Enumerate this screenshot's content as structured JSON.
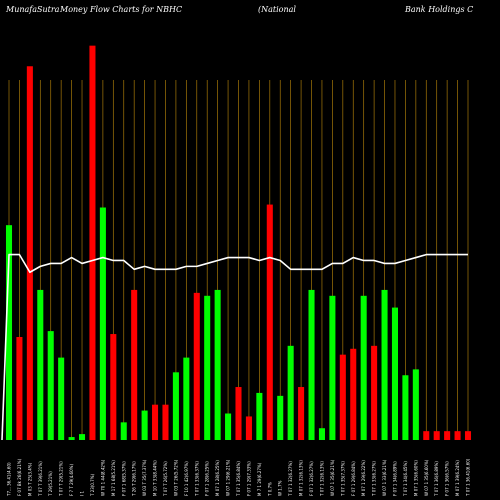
{
  "header": {
    "site": "MunafaSutra",
    "subtitle": "Money Flow  Charts for NBHC",
    "company_open": "(National",
    "company_rest": "Bank Holdings C"
  },
  "colors": {
    "background": "#000000",
    "up": "#00ff00",
    "down": "#ff0000",
    "grid": "#b8860b",
    "line": "#ffffff"
  },
  "chart_data": {
    "type": "bar",
    "title": "MunafaSutra  Money Flow  Charts for NBHC",
    "grid": true,
    "categories": [
      "T7... 36.41(4.60)",
      "F 07 Bk 26(6.21%)",
      "M 03 T 25(3.4%)",
      "T 07 T 39(6.21%)",
      "T 29(5.21%)",
      "T 07 T 29(5.21%)",
      "F 7 T 29(4.60%)",
      "I 1",
      "T 23(0.7%)",
      "W 70 1 44(8.42%)",
      "M 17 1 68(5.21%)",
      "F 07 1 68(5.37%)",
      "T 26 T 29(6.17%)",
      "W 03 T 35(7.37%)",
      "M 10 T 33(8.44%)",
      "T 07 T 26(5.72%)",
      "W 03 T 26(5.72%)",
      "F 10 1 42(6.97%)",
      "T 07 1 33(6.37%)",
      "F 07 1 28(6.25%)",
      "M 07 1 28(6.25%)",
      "W 07 1 29(6.21%)",
      "T 07 1 35(6.84%)",
      "F 07 1 29(7.33%)",
      "M 7 1 29(6.27%)",
      "T 0.7%",
      "W 1.7%",
      "T 07 1 32(6.27%)",
      "M 07 1 32(6.13%)",
      "F 07 1 32(6.27%)",
      "T 07 1 32(6.13%)",
      "W 07 1 35(6.21%)",
      "T 07 1 35(7.37%)",
      "F 07 1 29(6.84%)",
      "M 07 1 29(6.22%)",
      "T 07 1 33(6.27%)",
      "W 07 1 33(6.21%)",
      "F 07 1 34(6.89%)",
      "T 07 1 34(6.45%)",
      "M 07 1 35(6.60%)",
      "W 07 1 35(6.60%)",
      "T 07 1 36(6.89%)",
      "F 07 1 36(6.57%)",
      "M 07 1 39(6.24%)",
      "T 07 1 36.41(6.60)"
    ],
    "values": [
      73,
      35,
      127,
      51,
      37,
      28,
      1,
      2,
      134,
      79,
      36,
      6,
      51,
      10,
      12,
      12,
      23,
      28,
      50,
      49,
      51,
      9,
      18,
      8,
      16,
      80,
      15,
      32,
      18,
      51,
      4,
      49,
      29,
      31,
      49,
      32,
      51,
      45,
      22,
      24,
      3,
      3,
      3,
      3,
      3
    ],
    "directions": [
      "up",
      "down",
      "down",
      "up",
      "up",
      "up",
      "up",
      "up",
      "down",
      "up",
      "down",
      "up",
      "down",
      "up",
      "down",
      "down",
      "up",
      "up",
      "down",
      "up",
      "up",
      "up",
      "down",
      "down",
      "up",
      "down",
      "up",
      "up",
      "down",
      "up",
      "up",
      "up",
      "down",
      "down",
      "up",
      "down",
      "up",
      "up",
      "up",
      "up",
      "down",
      "down",
      "down",
      "down",
      "down"
    ],
    "line_values": [
      63,
      63,
      57,
      59,
      60,
      60,
      62,
      60,
      61,
      62,
      61,
      61,
      58,
      59,
      58,
      58,
      58,
      59,
      59,
      60,
      61,
      62,
      62,
      62,
      61,
      62,
      61,
      58,
      58,
      58,
      58,
      60,
      60,
      62,
      61,
      61,
      60,
      60,
      61,
      62,
      63,
      63,
      63,
      63,
      63
    ],
    "ylim": [
      0,
      140
    ]
  }
}
